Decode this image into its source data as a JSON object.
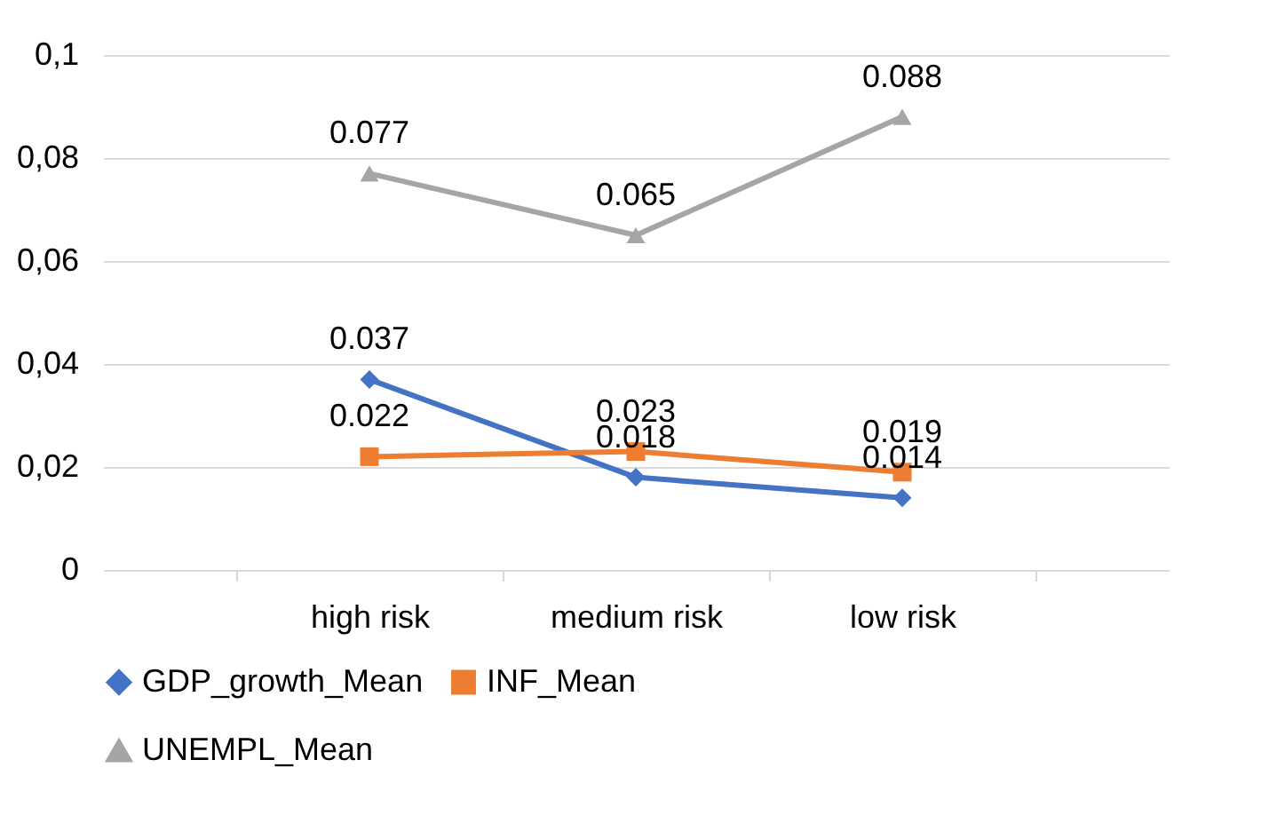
{
  "chart_data": {
    "type": "line",
    "categories": [
      "high risk",
      "medium risk",
      "low risk"
    ],
    "series": [
      {
        "name": "GDP_growth_Mean",
        "color": "#4472c4",
        "marker": "diamond",
        "values": [
          0.037,
          0.018,
          0.014
        ]
      },
      {
        "name": "INF_Mean",
        "color": "#ed7d31",
        "marker": "square",
        "values": [
          0.022,
          0.023,
          0.019
        ]
      },
      {
        "name": "UNEMPL_Mean",
        "color": "#a5a5a5",
        "marker": "triangle",
        "values": [
          0.077,
          0.065,
          0.088
        ]
      }
    ],
    "ylim": [
      0,
      0.1
    ],
    "yticks": [
      {
        "value": 0,
        "label": "0"
      },
      {
        "value": 0.02,
        "label": "0,02"
      },
      {
        "value": 0.04,
        "label": "0,04"
      },
      {
        "value": 0.06,
        "label": "0,06"
      },
      {
        "value": 0.08,
        "label": "0,08"
      },
      {
        "value": 0.1,
        "label": "0,1"
      }
    ],
    "grid": "y",
    "legend": "bottom",
    "data_labels": true,
    "line_style": "solid"
  }
}
